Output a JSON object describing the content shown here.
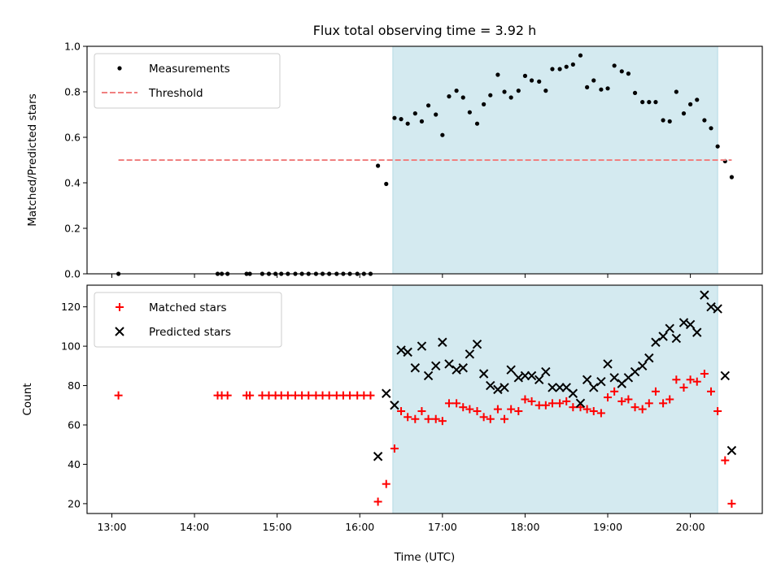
{
  "chart_data": [
    {
      "type": "scatter",
      "title": "Flux total observing time = 3.92 h",
      "xlabel": "",
      "ylabel": "Matched/Predicted stars",
      "xlim_hours": [
        12.7,
        20.87
      ],
      "ylim": [
        0,
        1.0
      ],
      "yticks": [
        0.0,
        0.2,
        0.4,
        0.6,
        0.8,
        1.0
      ],
      "ytick_labels": [
        "0.0",
        "0.2",
        "0.4",
        "0.6",
        "0.8",
        "1.0"
      ],
      "shaded_region_hours": [
        16.4,
        20.33
      ],
      "shade_color": "#d4eaf0",
      "legend_position": "top-left",
      "series": [
        {
          "name": "Measurements",
          "kind": "points",
          "color": "#000000",
          "x": [
            13.08,
            14.28,
            14.33,
            14.4,
            14.63,
            14.67,
            14.82,
            14.9,
            14.98,
            15.05,
            15.13,
            15.22,
            15.3,
            15.38,
            15.47,
            15.55,
            15.63,
            15.72,
            15.8,
            15.88,
            15.97,
            16.05,
            16.13,
            16.22,
            16.32,
            16.42,
            16.5,
            16.58,
            16.67,
            16.75,
            16.83,
            16.92,
            17.0,
            17.08,
            17.17,
            17.25,
            17.33,
            17.42,
            17.5,
            17.58,
            17.67,
            17.75,
            17.83,
            17.92,
            18.0,
            18.08,
            18.17,
            18.25,
            18.33,
            18.42,
            18.5,
            18.58,
            18.67,
            18.75,
            18.83,
            18.92,
            19.0,
            19.08,
            19.17,
            19.25,
            19.33,
            19.42,
            19.5,
            19.58,
            19.67,
            19.75,
            19.83,
            19.92,
            20.0,
            20.08,
            20.17,
            20.25,
            20.33,
            20.42,
            20.5
          ],
          "values": [
            0,
            0,
            0,
            0,
            0,
            0,
            0,
            0,
            0,
            0,
            0,
            0,
            0,
            0,
            0,
            0,
            0,
            0,
            0,
            0,
            0,
            0,
            0,
            0.475,
            0.395,
            0.685,
            0.68,
            0.66,
            0.705,
            0.67,
            0.74,
            0.7,
            0.61,
            0.78,
            0.805,
            0.775,
            0.71,
            0.66,
            0.745,
            0.785,
            0.875,
            0.8,
            0.775,
            0.805,
            0.87,
            0.85,
            0.845,
            0.805,
            0.9,
            0.9,
            0.91,
            0.92,
            0.96,
            0.82,
            0.85,
            0.81,
            0.815,
            0.915,
            0.89,
            0.88,
            0.795,
            0.755,
            0.755,
            0.755,
            0.675,
            0.67,
            0.8,
            0.705,
            0.745,
            0.765,
            0.675,
            0.64,
            0.56,
            0.495,
            0.425
          ]
        },
        {
          "name": "Threshold",
          "kind": "dashed-line",
          "color": "#f08080",
          "x": [
            13.08,
            20.5
          ],
          "values": [
            0.5,
            0.5
          ]
        }
      ]
    },
    {
      "type": "scatter",
      "title": "",
      "xlabel": "Time (UTC)",
      "ylabel": "Count",
      "xlim_hours": [
        12.7,
        20.87
      ],
      "xticks_hours": [
        13,
        14,
        15,
        16,
        17,
        18,
        19,
        20
      ],
      "xtick_labels": [
        "13:00",
        "14:00",
        "15:00",
        "16:00",
        "17:00",
        "18:00",
        "19:00",
        "20:00"
      ],
      "ylim": [
        15,
        131
      ],
      "yticks": [
        20,
        40,
        60,
        80,
        100,
        120
      ],
      "ytick_labels": [
        "20",
        "40",
        "60",
        "80",
        "100",
        "120"
      ],
      "shaded_region_hours": [
        16.4,
        20.33
      ],
      "shade_color": "#d4eaf0",
      "legend_position": "top-left",
      "series": [
        {
          "name": "Matched stars",
          "kind": "plus",
          "color": "#ff0000",
          "x": [
            13.08,
            14.28,
            14.33,
            14.4,
            14.63,
            14.67,
            14.82,
            14.9,
            14.98,
            15.05,
            15.13,
            15.22,
            15.3,
            15.38,
            15.47,
            15.55,
            15.63,
            15.72,
            15.8,
            15.88,
            15.97,
            16.05,
            16.13,
            16.22,
            16.32,
            16.42,
            16.5,
            16.58,
            16.67,
            16.75,
            16.83,
            16.92,
            17.0,
            17.08,
            17.17,
            17.25,
            17.33,
            17.42,
            17.5,
            17.58,
            17.67,
            17.75,
            17.83,
            17.92,
            18.0,
            18.08,
            18.17,
            18.25,
            18.33,
            18.42,
            18.5,
            18.58,
            18.67,
            18.75,
            18.83,
            18.92,
            19.0,
            19.08,
            19.17,
            19.25,
            19.33,
            19.42,
            19.5,
            19.58,
            19.67,
            19.75,
            19.83,
            19.92,
            20.0,
            20.08,
            20.17,
            20.25,
            20.33,
            20.42,
            20.5
          ],
          "values": [
            75,
            75,
            75,
            75,
            75,
            75,
            75,
            75,
            75,
            75,
            75,
            75,
            75,
            75,
            75,
            75,
            75,
            75,
            75,
            75,
            75,
            75,
            75,
            21,
            30,
            48,
            67,
            64,
            63,
            67,
            63,
            63,
            62,
            71,
            71,
            69,
            68,
            67,
            64,
            63,
            68,
            63,
            68,
            67,
            73,
            72,
            70,
            70,
            71,
            71,
            72,
            69,
            69,
            68,
            67,
            66,
            74,
            77,
            72,
            73,
            69,
            68,
            71,
            77,
            71,
            73,
            83,
            79,
            83,
            82,
            86,
            77,
            67,
            42,
            20
          ]
        },
        {
          "name": "Predicted stars",
          "kind": "cross",
          "color": "#000000",
          "x": [
            16.22,
            16.32,
            16.42,
            16.5,
            16.58,
            16.67,
            16.75,
            16.83,
            16.92,
            17.0,
            17.08,
            17.17,
            17.25,
            17.33,
            17.42,
            17.5,
            17.58,
            17.67,
            17.75,
            17.83,
            17.92,
            18.0,
            18.08,
            18.17,
            18.25,
            18.33,
            18.42,
            18.5,
            18.58,
            18.67,
            18.75,
            18.83,
            18.92,
            19.0,
            19.08,
            19.17,
            19.25,
            19.33,
            19.42,
            19.5,
            19.58,
            19.67,
            19.75,
            19.83,
            19.92,
            20.0,
            20.08,
            20.17,
            20.25,
            20.33,
            20.42,
            20.5
          ],
          "values": [
            44,
            76,
            70,
            98,
            97,
            89,
            100,
            85,
            90,
            102,
            91,
            88,
            89,
            96,
            101,
            86,
            80,
            78,
            79,
            88,
            84,
            85,
            85,
            83,
            87,
            79,
            79,
            79,
            76,
            71,
            83,
            79,
            82,
            91,
            84,
            81,
            84,
            87,
            90,
            94,
            102,
            105,
            109,
            104,
            112,
            111,
            107,
            126,
            120,
            119,
            85,
            47
          ]
        }
      ]
    }
  ]
}
